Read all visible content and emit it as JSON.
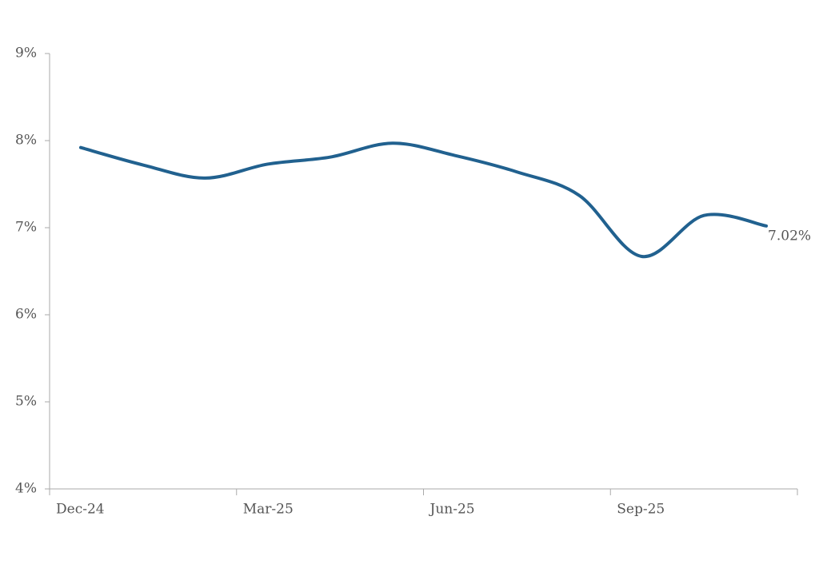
{
  "chart_data": {
    "type": "line",
    "categories": [
      "Dec-24",
      null,
      null,
      "Mar-25",
      null,
      null,
      "Jun-25",
      null,
      null,
      "Sep-25",
      null,
      null
    ],
    "series": [
      {
        "color": "#21618f",
        "values": [
          7.92,
          7.72,
          7.57,
          7.73,
          7.81,
          7.97,
          7.83,
          7.64,
          7.37,
          6.67,
          7.14,
          7.02
        ],
        "value_labels": [
          null,
          null,
          null,
          null,
          null,
          null,
          null,
          null,
          null,
          null,
          null,
          "7.02%"
        ]
      }
    ],
    "ylim": [
      4,
      9
    ],
    "yticks": [
      {
        "value": 4,
        "label": "4%"
      },
      {
        "value": 5,
        "label": "5%"
      },
      {
        "value": 6,
        "label": "6%"
      },
      {
        "value": 7,
        "label": "7%"
      },
      {
        "value": 8,
        "label": "8%"
      },
      {
        "value": 9,
        "label": "9%"
      }
    ],
    "grid": false
  }
}
